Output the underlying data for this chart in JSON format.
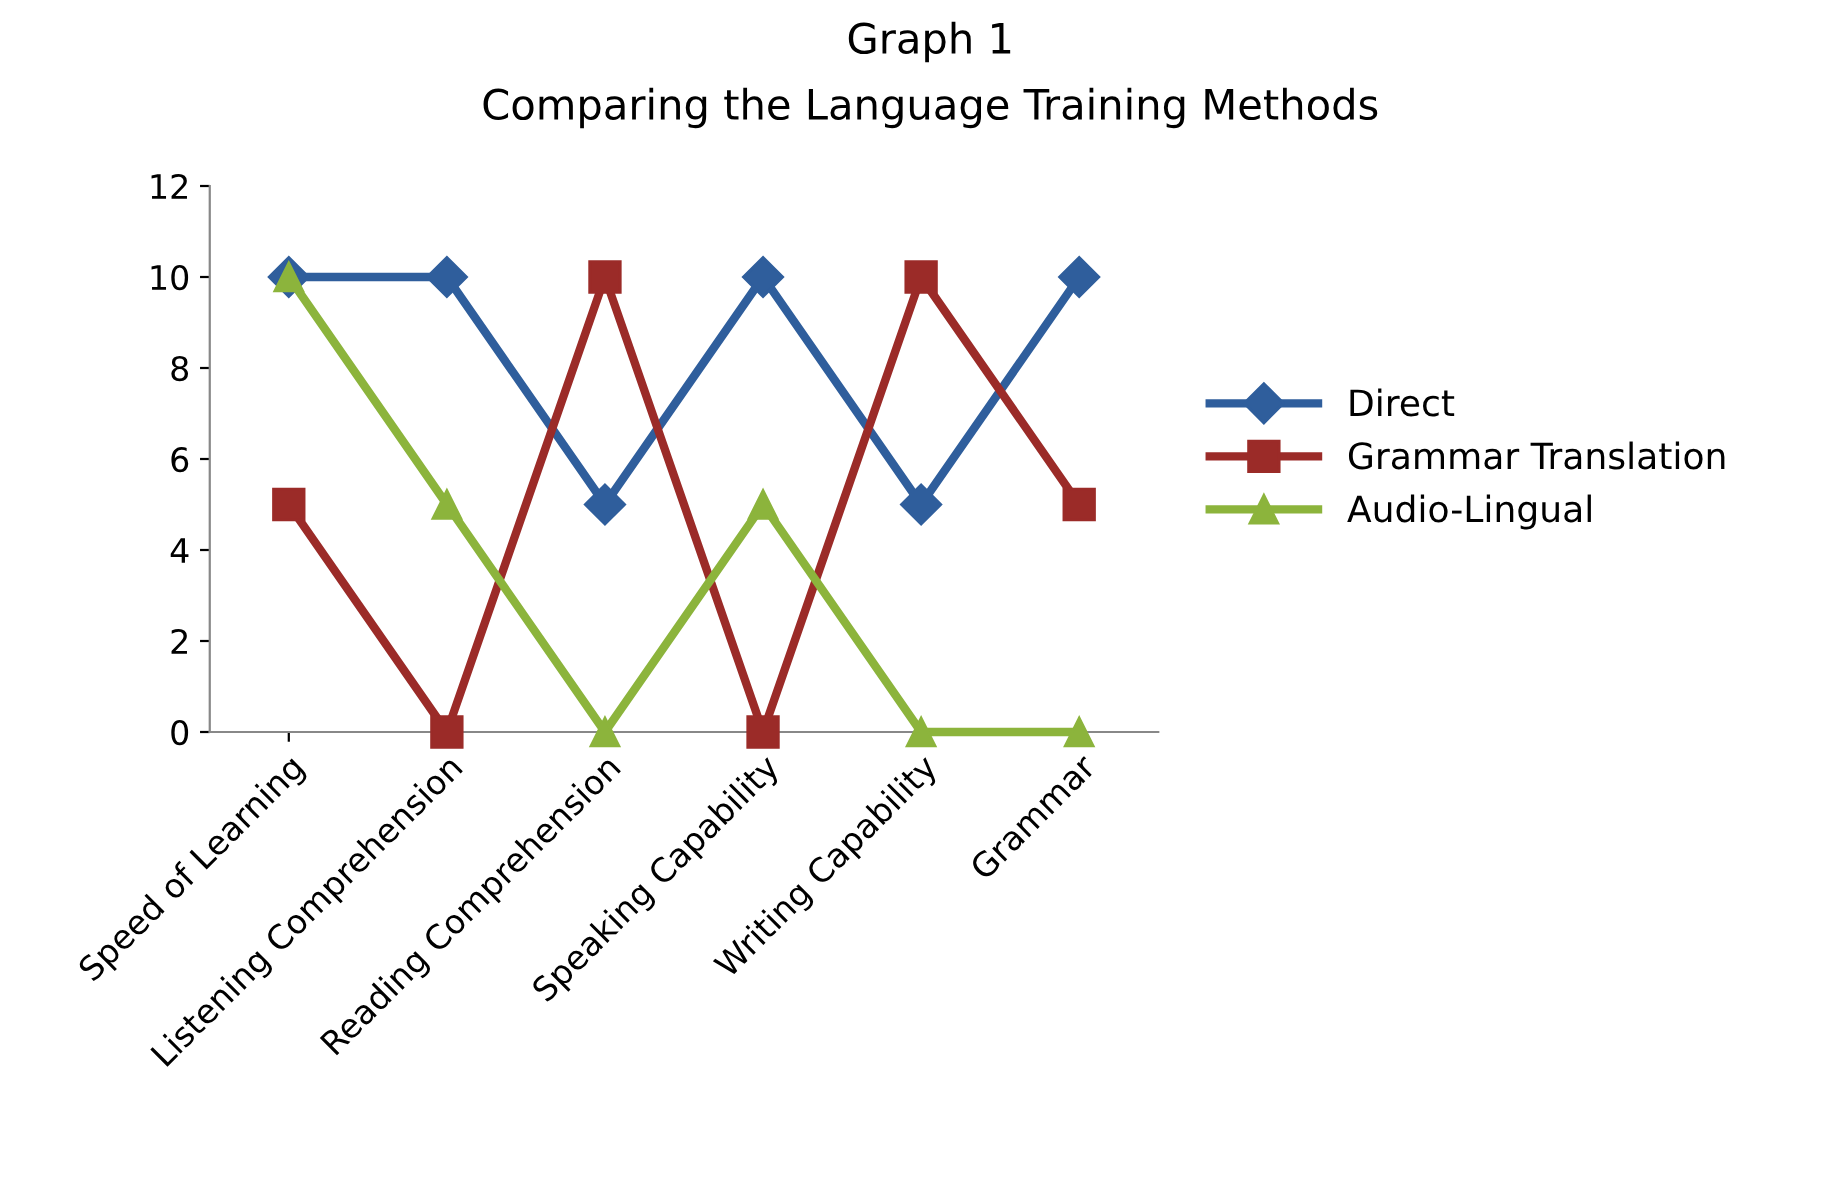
{
  "chart_data": {
    "type": "line",
    "title": "Graph 1",
    "subtitle": "Comparing the Language Training Methods",
    "categories": [
      "Speed of Learning",
      "Listening Comprehension",
      "Reading Comprehension",
      "Speaking Capability",
      "Writing Capability",
      "Grammar"
    ],
    "series": [
      {
        "name": "Direct",
        "color": "#2f5e9c",
        "marker": "diamond",
        "values": [
          10,
          10,
          5,
          10,
          5,
          10
        ]
      },
      {
        "name": "Grammar Translation",
        "color": "#9b2b28",
        "marker": "square",
        "values": [
          5,
          0,
          10,
          0,
          10,
          5
        ]
      },
      {
        "name": "Audio-Lingual",
        "color": "#8cb43c",
        "marker": "triangle",
        "values": [
          10,
          5,
          0,
          5,
          0,
          0
        ]
      }
    ],
    "ylim": [
      0,
      12
    ],
    "yticks": [
      0,
      2,
      4,
      6,
      8,
      10,
      12
    ],
    "grid": false,
    "legend": "right",
    "line_style": "solid"
  }
}
